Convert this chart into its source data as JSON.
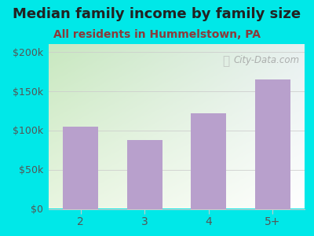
{
  "title": "Median family income by family size",
  "subtitle": "All residents in Hummelstown, PA",
  "categories": [
    "2",
    "3",
    "4",
    "5+"
  ],
  "values": [
    105000,
    88000,
    122000,
    165000
  ],
  "bar_color": "#b8a0cc",
  "title_color": "#222222",
  "subtitle_color": "#8b3a3a",
  "background_color": "#00e8e8",
  "plot_bg_color_topleft": "#c8e8c0",
  "plot_bg_color_topright": "#e8f0f0",
  "plot_bg_color_bottomleft": "#e8f5e0",
  "plot_bg_color_bottomright": "#ffffff",
  "yticks": [
    0,
    50000,
    100000,
    150000,
    200000
  ],
  "ytick_labels": [
    "$0",
    "$50k",
    "$100k",
    "$150k",
    "$200k"
  ],
  "ylim": [
    0,
    210000
  ],
  "tick_color": "#555555",
  "grid_color": "#cccccc",
  "watermark_text": "City-Data.com",
  "watermark_color": "#aaaaaa",
  "title_fontsize": 13,
  "subtitle_fontsize": 10
}
